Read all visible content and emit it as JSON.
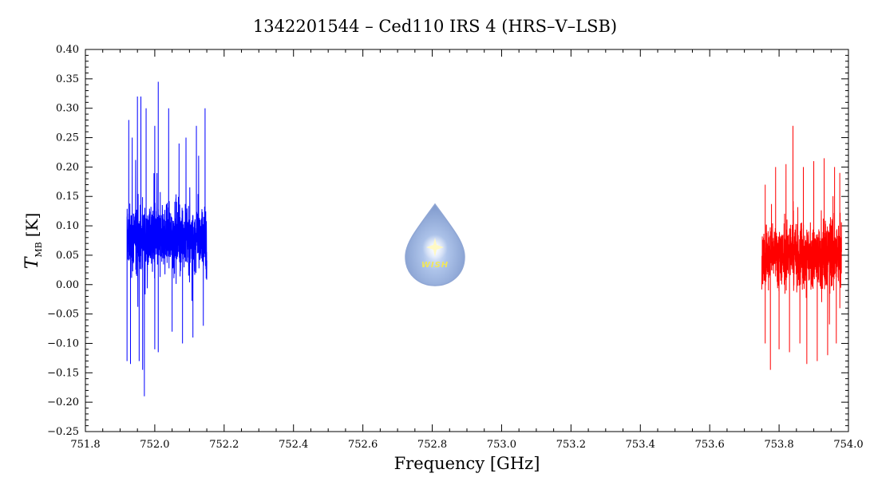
{
  "chart_data": {
    "type": "line",
    "title": "1342201544 – Ced110 IRS 4 (HRS–V–LSB)",
    "xlabel": "Frequency [GHz]",
    "ylabel": {
      "main": "T",
      "sub": "MB",
      "unit": "[K]"
    },
    "xlim": [
      751.8,
      754.0
    ],
    "ylim": [
      -0.25,
      0.4
    ],
    "x_ticks": [
      "751.8",
      "752.0",
      "752.2",
      "752.4",
      "752.6",
      "752.8",
      "753.0",
      "753.2",
      "753.4",
      "753.6",
      "753.8",
      "754.0"
    ],
    "y_ticks": [
      "0.40",
      "0.35",
      "0.30",
      "0.25",
      "0.20",
      "0.15",
      "0.10",
      "0.05",
      "0.00",
      "−0.05",
      "−0.10",
      "−0.15",
      "−0.20",
      "−0.25"
    ],
    "grid": false,
    "logo_text": "WISH",
    "series": [
      {
        "color": "#0000ff",
        "x_range": [
          751.92,
          752.15
        ],
        "baseline": 0.08,
        "peaks": [
          {
            "x": 751.925,
            "y": 0.28
          },
          {
            "x": 751.935,
            "y": 0.25
          },
          {
            "x": 751.95,
            "y": 0.32
          },
          {
            "x": 751.96,
            "y": 0.32
          },
          {
            "x": 751.975,
            "y": 0.3
          },
          {
            "x": 752.0,
            "y": 0.27
          },
          {
            "x": 752.01,
            "y": 0.345
          },
          {
            "x": 752.04,
            "y": 0.3
          },
          {
            "x": 752.07,
            "y": 0.24
          },
          {
            "x": 752.09,
            "y": 0.25
          },
          {
            "x": 752.12,
            "y": 0.27
          },
          {
            "x": 752.145,
            "y": 0.3
          }
        ],
        "troughs": [
          {
            "x": 751.92,
            "y": -0.13
          },
          {
            "x": 751.93,
            "y": -0.135
          },
          {
            "x": 751.955,
            "y": -0.13
          },
          {
            "x": 751.965,
            "y": -0.145
          },
          {
            "x": 751.97,
            "y": -0.19
          },
          {
            "x": 752.0,
            "y": -0.11
          },
          {
            "x": 752.01,
            "y": -0.115
          },
          {
            "x": 752.05,
            "y": -0.08
          },
          {
            "x": 752.08,
            "y": -0.1
          },
          {
            "x": 752.11,
            "y": -0.09
          },
          {
            "x": 752.14,
            "y": -0.07
          }
        ]
      },
      {
        "color": "#ff0000",
        "x_range": [
          753.75,
          753.98
        ],
        "baseline": 0.05,
        "peaks": [
          {
            "x": 753.76,
            "y": 0.17
          },
          {
            "x": 753.79,
            "y": 0.2
          },
          {
            "x": 753.82,
            "y": 0.205
          },
          {
            "x": 753.84,
            "y": 0.27
          },
          {
            "x": 753.87,
            "y": 0.2
          },
          {
            "x": 753.9,
            "y": 0.21
          },
          {
            "x": 753.93,
            "y": 0.215
          },
          {
            "x": 753.96,
            "y": 0.2
          },
          {
            "x": 753.975,
            "y": 0.19
          }
        ],
        "troughs": [
          {
            "x": 753.76,
            "y": -0.1
          },
          {
            "x": 753.775,
            "y": -0.145
          },
          {
            "x": 753.8,
            "y": -0.11
          },
          {
            "x": 753.83,
            "y": -0.115
          },
          {
            "x": 753.86,
            "y": -0.1
          },
          {
            "x": 753.88,
            "y": -0.135
          },
          {
            "x": 753.91,
            "y": -0.13
          },
          {
            "x": 753.94,
            "y": -0.12
          },
          {
            "x": 753.965,
            "y": -0.1
          }
        ]
      }
    ]
  }
}
